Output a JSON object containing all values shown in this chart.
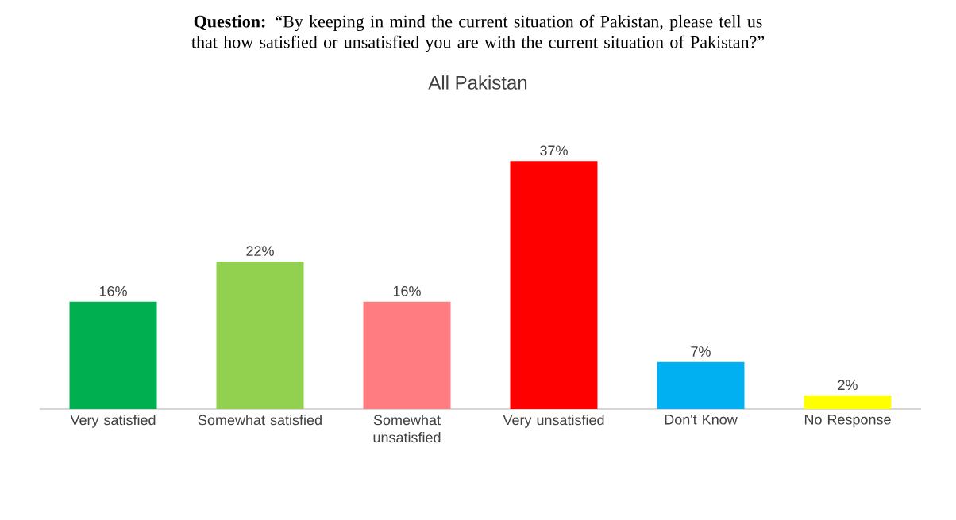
{
  "chart_data": {
    "type": "bar",
    "title": "**Question:** “By keeping in mind the current situation of Pakistan, please tell us that how satisfied or unsatisfied you are with the current situation of Pakistan?”",
    "subtitle": "All Pakistan",
    "categories": [
      "Very satisfied",
      "Somewhat satisfied",
      "Somewhat unsatisfied",
      "Very unsatisfied",
      "Don't Know",
      "No Response"
    ],
    "values": [
      16,
      22,
      16,
      37,
      7,
      2
    ],
    "value_labels": [
      "16%",
      "22%",
      "16%",
      "37%",
      "7%",
      "2%"
    ],
    "colors": [
      "#00b050",
      "#92d050",
      "#ff7c80",
      "#ff0000",
      "#00b0f0",
      "#ffff00"
    ]
  }
}
